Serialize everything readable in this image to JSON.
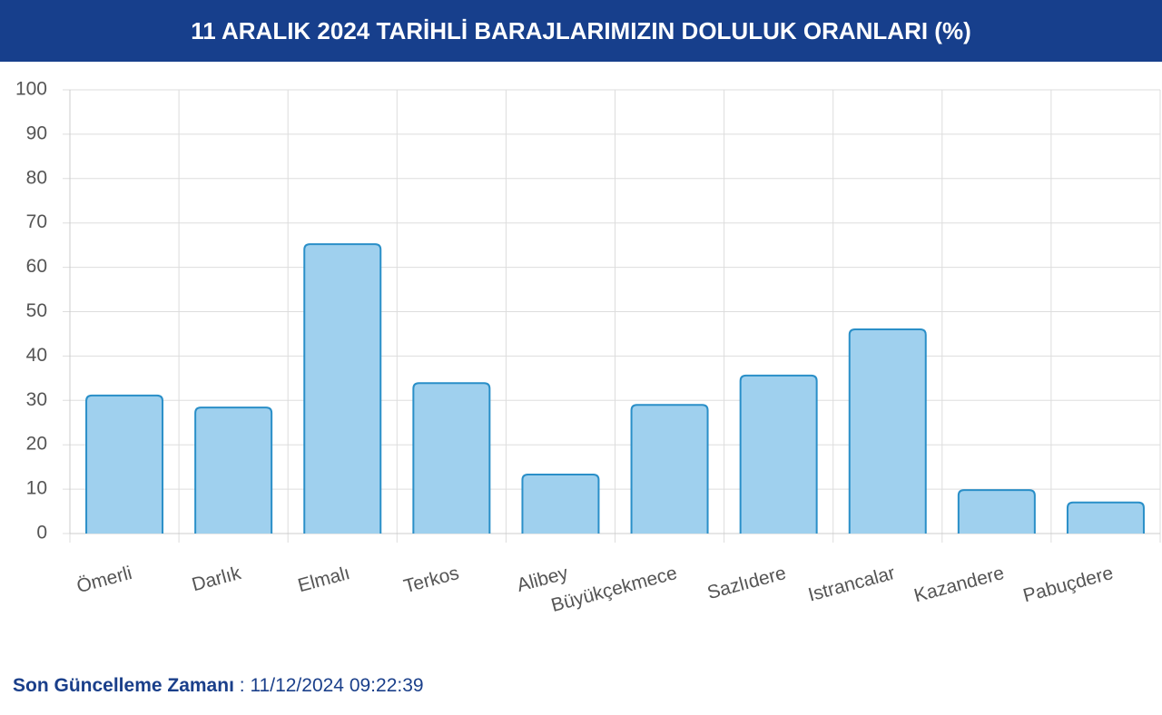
{
  "chart_data": {
    "type": "bar",
    "title": "11 ARALIK 2024 TARİHLİ BARAJLARIMIZIN DOLULUK ORANLARI (%)",
    "categories": [
      "Ömerli",
      "Darlık",
      "Elmalı",
      "Terkos",
      "Alibey",
      "Büyükçekmece",
      "Sazlıdere",
      "Istrancalar",
      "Kazandere",
      "Pabuçdere"
    ],
    "values": [
      31.1,
      28.4,
      65.2,
      33.9,
      13.3,
      29.0,
      35.6,
      46.0,
      9.8,
      7.0
    ],
    "color": "#9fd0ee",
    "edge_color": "#2a8fc8",
    "ylim": [
      0,
      100
    ],
    "yticks": [
      0,
      10,
      20,
      30,
      40,
      50,
      60,
      70,
      80,
      90,
      100
    ],
    "grid": true
  },
  "footer": {
    "label": "Son Güncelleme Zamanı",
    "separator": ":",
    "value": "11/12/2024 09:22:39"
  }
}
